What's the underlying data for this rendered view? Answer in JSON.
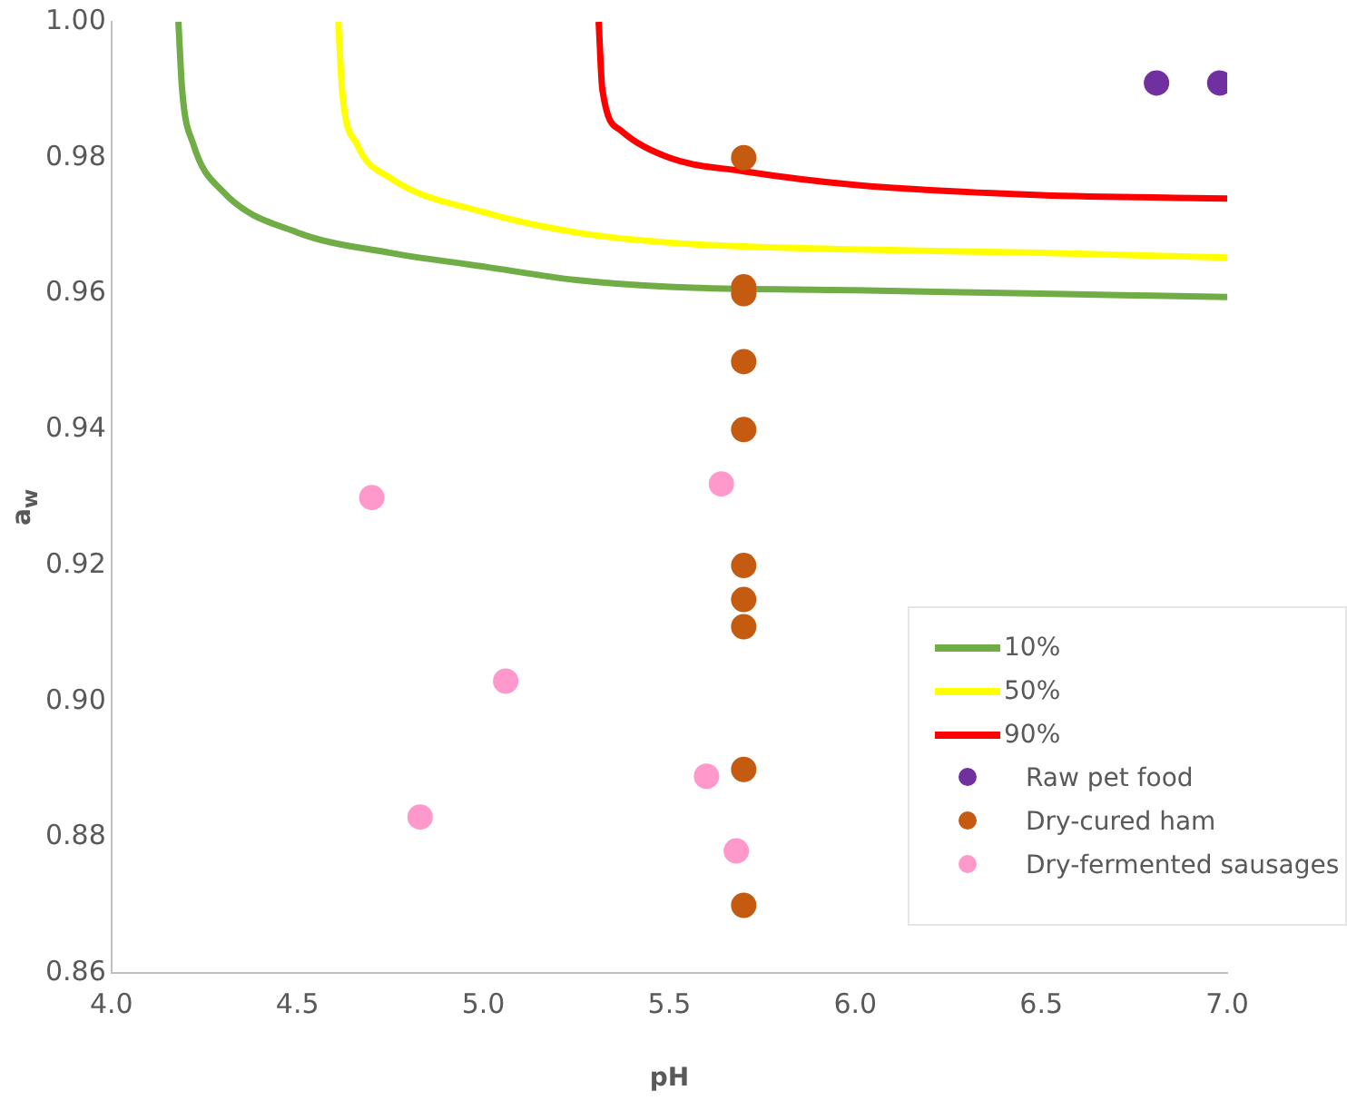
{
  "chart_data": {
    "type": "scatter",
    "xlabel": "pH",
    "ylabel": "a$_{w}$",
    "xlim": [
      4.0,
      7.0
    ],
    "ylim": [
      0.86,
      1.0
    ],
    "xticks": [
      {
        "value": 4.0,
        "label": "4.0"
      },
      {
        "value": 4.5,
        "label": "4.5"
      },
      {
        "value": 5.0,
        "label": "5.0"
      },
      {
        "value": 5.5,
        "label": "5.5"
      },
      {
        "value": 6.0,
        "label": "6.0"
      },
      {
        "value": 6.5,
        "label": "6.5"
      },
      {
        "value": 7.0,
        "label": "7.0"
      }
    ],
    "yticks": [
      {
        "value": 0.86,
        "label": "0.86"
      },
      {
        "value": 0.88,
        "label": "0.88"
      },
      {
        "value": 0.9,
        "label": "0.90"
      },
      {
        "value": 0.92,
        "label": "0.92"
      },
      {
        "value": 0.94,
        "label": "0.94"
      },
      {
        "value": 0.96,
        "label": "0.96"
      },
      {
        "value": 0.98,
        "label": "0.98"
      },
      {
        "value": 1.0,
        "label": "1.00"
      }
    ],
    "grid": false,
    "legend": "bottom right",
    "series": [
      {
        "name": "10%",
        "type": "line",
        "color": "#70ad47",
        "marker": "none",
        "line_style": "solid",
        "x": [
          4.18,
          4.19,
          4.22,
          4.3,
          4.5,
          4.75,
          5.0,
          5.25,
          5.5,
          6.0,
          6.5,
          7.0
        ],
        "values": [
          1.0,
          0.99,
          0.982,
          0.975,
          0.969,
          0.966,
          0.964,
          0.962,
          0.961,
          0.9605,
          0.96,
          0.9595
        ]
      },
      {
        "name": "50%",
        "type": "line",
        "color": "#ffff00",
        "marker": "none",
        "line_style": "solid",
        "x": [
          4.61,
          4.62,
          4.66,
          4.75,
          5.0,
          5.25,
          5.5,
          6.0,
          6.5,
          7.0
        ],
        "values": [
          1.0,
          0.99,
          0.982,
          0.977,
          0.972,
          0.969,
          0.9675,
          0.9665,
          0.966,
          0.9653
        ]
      },
      {
        "name": "90%",
        "type": "line",
        "color": "#ff0000",
        "marker": "none",
        "line_style": "solid",
        "x": [
          5.31,
          5.32,
          5.37,
          5.5,
          5.7,
          6.0,
          6.5,
          7.0
        ],
        "values": [
          1.0,
          0.99,
          0.984,
          0.98,
          0.978,
          0.976,
          0.9745,
          0.974
        ]
      },
      {
        "name": "Raw pet food",
        "color": "#7030a0",
        "marker": "circle",
        "x": [
          6.81,
          6.98
        ],
        "values": [
          0.991,
          0.991
        ]
      },
      {
        "name": "Dry-cured ham",
        "color": "#c55a11",
        "marker": "circle",
        "x": [
          5.7,
          5.7,
          5.7,
          5.7,
          5.7,
          5.7,
          5.7,
          5.7,
          5.7,
          5.7
        ],
        "values": [
          0.98,
          0.961,
          0.96,
          0.95,
          0.94,
          0.92,
          0.915,
          0.911,
          0.89,
          0.87
        ]
      },
      {
        "name": "Dry-fermented sausages",
        "color": "#ff99cc",
        "marker": "circle",
        "x": [
          4.7,
          5.64,
          5.06,
          5.6,
          4.83,
          5.68
        ],
        "values": [
          0.93,
          0.932,
          0.903,
          0.889,
          0.883,
          0.878
        ]
      }
    ]
  }
}
